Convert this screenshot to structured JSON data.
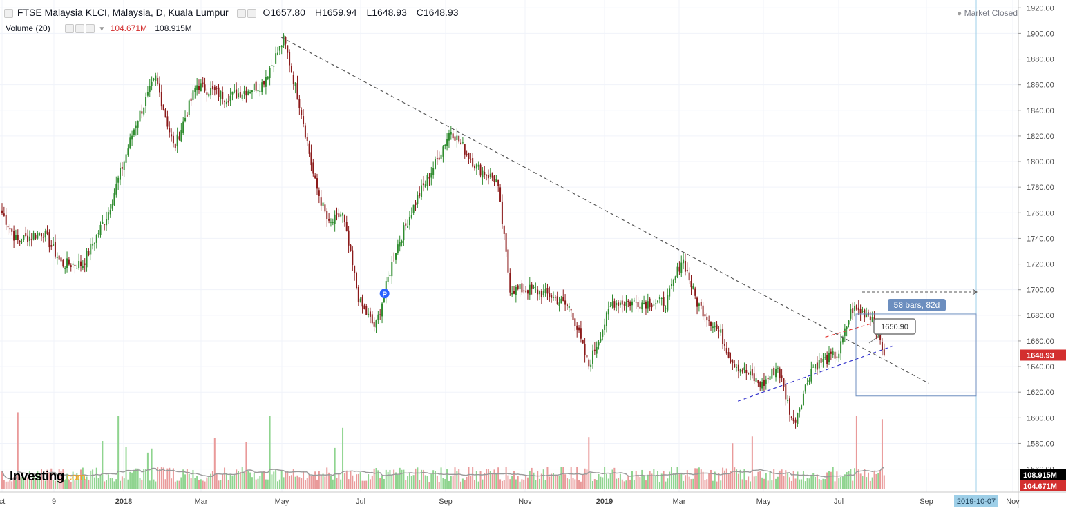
{
  "header": {
    "symbol": "FTSE Malaysia KLCI, Malaysia, D, Kuala Lumpur",
    "o_label": "O",
    "o_val": "1657.80",
    "h_label": "H",
    "h_val": "1659.94",
    "l_label": "L",
    "l_val": "1648.93",
    "c_label": "C",
    "c_val": "1648.93",
    "volume_label": "Volume (20)",
    "vol_val": "104.671M",
    "vol_ma_val": "108.915M"
  },
  "status": {
    "text": "Market Closed",
    "dot_color": "#9e9e9e"
  },
  "logo": {
    "main": "Investing",
    "suffix": ".com"
  },
  "chart_data": {
    "type": "candlestick",
    "title": "FTSE Malaysia KLCI, Malaysia, D, Kuala Lumpur",
    "x_tick_labels": [
      "ct",
      "9",
      "2018",
      "Mar",
      "May",
      "Jul",
      "Sep",
      "Nov",
      "2019",
      "Mar",
      "May",
      "Jul",
      "Sep",
      "2019-10-07",
      "Nov"
    ],
    "y_tick_labels": [
      "1920.00",
      "1900.00",
      "1880.00",
      "1860.00",
      "1840.00",
      "1820.00",
      "1800.00",
      "1780.00",
      "1760.00",
      "1740.00",
      "1720.00",
      "1700.00",
      "1680.00",
      "1660.00",
      "1640.00",
      "1620.00",
      "1600.00",
      "1580.00",
      "1560.00"
    ],
    "y_range": [
      1549,
      1925
    ],
    "close_path": [
      {
        "date": "2017-10-01",
        "price": 1760
      },
      {
        "date": "2017-10-12",
        "price": 1738
      },
      {
        "date": "2017-11-01",
        "price": 1745
      },
      {
        "date": "2017-11-15",
        "price": 1720
      },
      {
        "date": "2017-12-01",
        "price": 1720
      },
      {
        "date": "2017-12-20",
        "price": 1760
      },
      {
        "date": "2018-01-10",
        "price": 1830
      },
      {
        "date": "2018-01-25",
        "price": 1865
      },
      {
        "date": "2018-02-08",
        "price": 1810
      },
      {
        "date": "2018-02-25",
        "price": 1860
      },
      {
        "date": "2018-03-20",
        "price": 1850
      },
      {
        "date": "2018-04-15",
        "price": 1860
      },
      {
        "date": "2018-05-02",
        "price": 1895
      },
      {
        "date": "2018-05-15",
        "price": 1840
      },
      {
        "date": "2018-05-25",
        "price": 1785
      },
      {
        "date": "2018-06-05",
        "price": 1750
      },
      {
        "date": "2018-06-15",
        "price": 1760
      },
      {
        "date": "2018-06-28",
        "price": 1690
      },
      {
        "date": "2018-07-10",
        "price": 1670
      },
      {
        "date": "2018-07-25",
        "price": 1730
      },
      {
        "date": "2018-08-10",
        "price": 1770
      },
      {
        "date": "2018-08-25",
        "price": 1800
      },
      {
        "date": "2018-09-05",
        "price": 1825
      },
      {
        "date": "2018-09-25",
        "price": 1795
      },
      {
        "date": "2018-10-10",
        "price": 1785
      },
      {
        "date": "2018-10-20",
        "price": 1700
      },
      {
        "date": "2018-11-05",
        "price": 1700
      },
      {
        "date": "2018-11-20",
        "price": 1695
      },
      {
        "date": "2018-12-05",
        "price": 1685
      },
      {
        "date": "2018-12-18",
        "price": 1640
      },
      {
        "date": "2019-01-05",
        "price": 1690
      },
      {
        "date": "2019-01-25",
        "price": 1690
      },
      {
        "date": "2019-02-15",
        "price": 1690
      },
      {
        "date": "2019-02-27",
        "price": 1725
      },
      {
        "date": "2019-03-10",
        "price": 1690
      },
      {
        "date": "2019-03-28",
        "price": 1665
      },
      {
        "date": "2019-04-05",
        "price": 1645
      },
      {
        "date": "2019-04-28",
        "price": 1625
      },
      {
        "date": "2019-05-10",
        "price": 1640
      },
      {
        "date": "2019-05-22",
        "price": 1595
      },
      {
        "date": "2019-06-05",
        "price": 1640
      },
      {
        "date": "2019-06-25",
        "price": 1650
      },
      {
        "date": "2019-07-05",
        "price": 1685
      },
      {
        "date": "2019-07-20",
        "price": 1680
      },
      {
        "date": "2019-07-30",
        "price": 1649
      }
    ],
    "last_price": {
      "value": 1648.93,
      "label": "1648.93",
      "color": "#d32f2f"
    },
    "volume": {
      "last": {
        "value": "104.671M"
      },
      "ma20": {
        "value": "108.915M"
      }
    },
    "drawings": {
      "trendline_down": {
        "from": {
          "date": "2018-04-30",
          "price": 1897
        },
        "to": {
          "date": "2019-09-01",
          "price": 1627
        },
        "color": "#555555"
      },
      "support_line": {
        "from": {
          "date": "2019-04-10",
          "price": 1613
        },
        "to": {
          "date": "2019-08-05",
          "price": 1656
        },
        "color": "#3333cc"
      },
      "red_segment": {
        "from": {
          "date": "2019-06-15",
          "price": 1663
        },
        "to": {
          "date": "2019-07-28",
          "price": 1676
        },
        "color": "#e53935"
      },
      "date_range": {
        "label": "58 bars, 82d",
        "price_top": 1681,
        "price_bottom": 1617,
        "color": "#6c8ebf"
      },
      "price_note": {
        "label": "1650.90"
      },
      "p_marker": {
        "label": "P",
        "date": "2018-07-17",
        "price": 1697
      }
    },
    "price_color_up": "#2e8b2e",
    "price_color_down": "#8b1a1a",
    "vol_color_up": "#8fd48f",
    "vol_color_down": "#e99a9a",
    "grid": true,
    "vertical_marker": {
      "date": "2019-10-07",
      "color": "#9ecfe8"
    }
  }
}
